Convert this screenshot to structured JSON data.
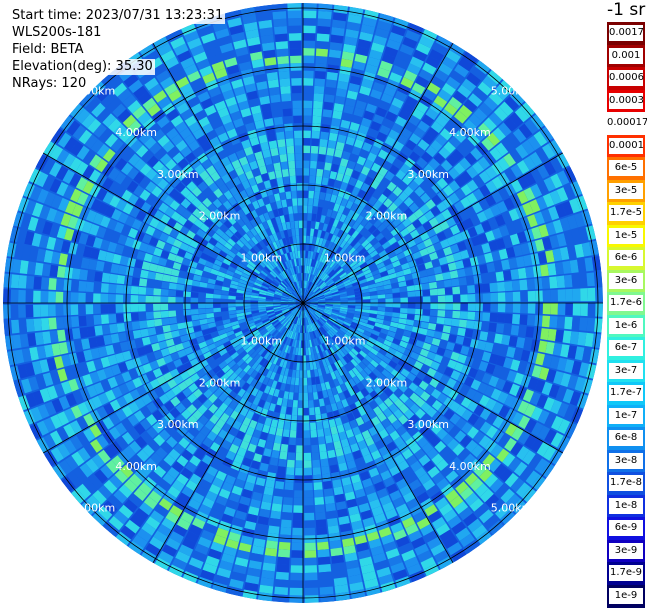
{
  "info": {
    "start_time": "Start time: 2023/07/31 13:23:31",
    "instrument": "WLS200s-181",
    "field": "Field: BETA",
    "elevation": "Elevation(deg): 35.30",
    "nrays": "NRays: 120"
  },
  "colorbar": {
    "unit": "-1 sr",
    "labels": [
      "0.0017",
      "0.001",
      "0.0006",
      "0.0003",
      "0.00017",
      "0.0001",
      "6e-5",
      "3e-5",
      "1.7e-5",
      "1e-5",
      "6e-6",
      "3e-6",
      "1.7e-6",
      "1e-6",
      "6e-7",
      "3e-7",
      "1.7e-7",
      "1e-7",
      "6e-8",
      "3e-8",
      "1.7e-8",
      "1e-8",
      "6e-9",
      "3e-9",
      "1.7e-9",
      "1e-9"
    ],
    "colors": [
      "#7a0000",
      "#a00000",
      "#c80000",
      "#e80000",
      "#ffffff",
      "#ff3000",
      "#ff7000",
      "#ffa000",
      "#ffd000",
      "#f8f800",
      "#d8f830",
      "#a8f860",
      "#80f890",
      "#50f8c0",
      "#30f0e0",
      "#20e0f0",
      "#10c8f8",
      "#10b0f8",
      "#1090f0",
      "#1070e8",
      "#1050e0",
      "#1030e0",
      "#1010e0",
      "#1000c0",
      "#000090",
      "#000060"
    ]
  },
  "range_rings": [
    "1.00km",
    "2.00km",
    "3.00km",
    "4.00km",
    "5.00km"
  ],
  "colors": {
    "background": "#1460e0",
    "mid": "#20a8f0",
    "ring": "#80f060"
  }
}
